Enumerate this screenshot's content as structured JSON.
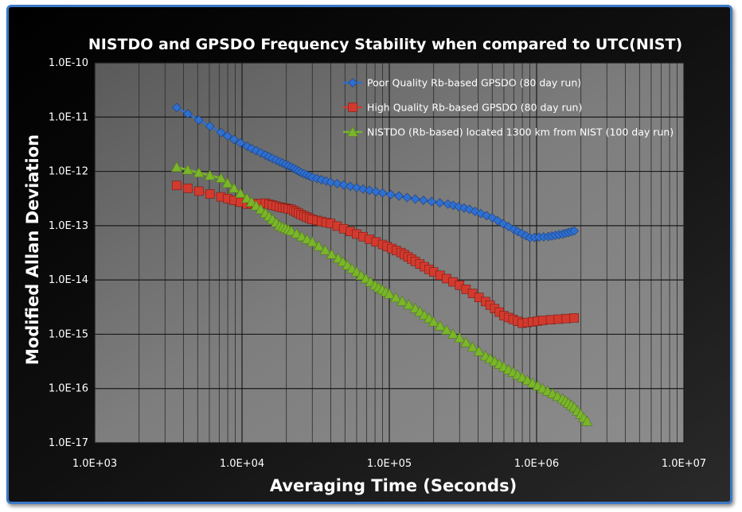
{
  "chart_data": {
    "type": "line",
    "title": "NISTDO and GPSDO Frequency Stability when compared to UTC(NIST)",
    "xlabel": "Averaging Time (Seconds)",
    "ylabel": "Modified Allan Deviation",
    "x_scale": "log",
    "y_scale": "log",
    "xlim": [
      1000,
      10000000
    ],
    "ylim": [
      1e-17,
      1e-10
    ],
    "x_tick_labels": [
      "1.0E+03",
      "1.0E+04",
      "1.0E+05",
      "1.0E+06",
      "1.0E+07"
    ],
    "y_tick_labels": [
      "1.0E-10",
      "1.0E-11",
      "1.0E-12",
      "1.0E-13",
      "1.0E-14",
      "1.0E-15",
      "1.0E-16",
      "1.0E-17"
    ],
    "grid": true,
    "legend_position": "top-right",
    "series": [
      {
        "name": "Poor Quality Rb-based GPSDO (80 day run)",
        "color": "#2e6fd0",
        "marker": "diamond",
        "points": [
          [
            3600,
            1.5e-11
          ],
          [
            7200,
            5.2e-12
          ],
          [
            10800,
            2.9e-12
          ],
          [
            14400,
            2e-12
          ],
          [
            18000,
            1.5e-12
          ],
          [
            21600,
            1.2e-12
          ],
          [
            25200,
            9.5e-13
          ],
          [
            30000,
            7.8e-13
          ],
          [
            40000,
            6.3e-13
          ],
          [
            60000,
            5e-13
          ],
          [
            90000,
            4e-13
          ],
          [
            150000,
            3.1e-13
          ],
          [
            250000,
            2.5e-13
          ],
          [
            350000,
            2e-13
          ],
          [
            500000,
            1.4e-13
          ],
          [
            700000,
            8.5e-14
          ],
          [
            900000,
            6e-14
          ],
          [
            1200000,
            6.3e-14
          ],
          [
            1500000,
            7e-14
          ],
          [
            1800000,
            8e-14
          ]
        ]
      },
      {
        "name": "High Quality Rb-based GPSDO (80 day run)",
        "color": "#d23a2e",
        "marker": "square",
        "points": [
          [
            3600,
            5.5e-13
          ],
          [
            7200,
            3.4e-13
          ],
          [
            10800,
            2.5e-13
          ],
          [
            14400,
            2.6e-13
          ],
          [
            18000,
            2.2e-13
          ],
          [
            21600,
            2e-13
          ],
          [
            25200,
            1.6e-13
          ],
          [
            30000,
            1.3e-13
          ],
          [
            40000,
            1.1e-13
          ],
          [
            60000,
            7e-14
          ],
          [
            90000,
            4.5e-14
          ],
          [
            120000,
            3.2e-14
          ],
          [
            150000,
            2.2e-14
          ],
          [
            200000,
            1.4e-14
          ],
          [
            300000,
            8e-15
          ],
          [
            450000,
            4e-15
          ],
          [
            600000,
            2.2e-15
          ],
          [
            800000,
            1.6e-15
          ],
          [
            1100000,
            1.8e-15
          ],
          [
            1800000,
            2e-15
          ]
        ]
      },
      {
        "name": "NISTDO (Rb-based)  located 1300 km from NIST (100 day run)",
        "color": "#7ab52a",
        "marker": "triangle",
        "points": [
          [
            3600,
            1.2e-12
          ],
          [
            7200,
            7.5e-13
          ],
          [
            10800,
            3.2e-13
          ],
          [
            14400,
            1.7e-13
          ],
          [
            18000,
            1e-13
          ],
          [
            21600,
            8e-14
          ],
          [
            30000,
            5e-14
          ],
          [
            45000,
            2.5e-14
          ],
          [
            60000,
            1.4e-14
          ],
          [
            80000,
            8e-15
          ],
          [
            100000,
            5.5e-15
          ],
          [
            150000,
            3e-15
          ],
          [
            200000,
            1.7e-15
          ],
          [
            300000,
            8.5e-16
          ],
          [
            450000,
            4e-16
          ],
          [
            600000,
            2.5e-16
          ],
          [
            800000,
            1.6e-16
          ],
          [
            1100000,
            1e-16
          ],
          [
            1500000,
            6.5e-17
          ],
          [
            1800000,
            4.5e-17
          ],
          [
            2200000,
            2.5e-17
          ]
        ]
      }
    ]
  }
}
